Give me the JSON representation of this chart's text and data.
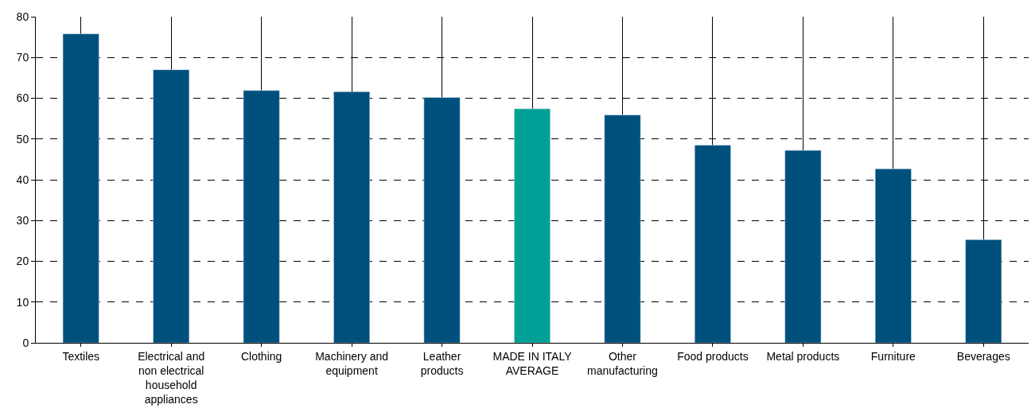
{
  "chart_data": {
    "type": "bar",
    "categories": [
      "Textiles",
      "Electrical and non electrical household appliances",
      "Clothing",
      "Machinery and equipment",
      "Leather products",
      "MADE IN ITALY AVERAGE",
      "Other manufacturing",
      "Food products",
      "Metal products",
      "Furniture",
      "Beverages"
    ],
    "values": [
      75.8,
      67.0,
      61.9,
      61.6,
      60.2,
      57.4,
      55.9,
      48.5,
      47.2,
      42.7,
      25.3
    ],
    "colors": [
      "#00507d",
      "#00507d",
      "#00507d",
      "#00507d",
      "#00507d",
      "#00a096",
      "#00507d",
      "#00507d",
      "#00507d",
      "#00507d",
      "#00507d"
    ],
    "ylim": [
      0,
      80
    ],
    "yticks": [
      0,
      10,
      20,
      30,
      40,
      50,
      60,
      70,
      80
    ],
    "grid": true,
    "legend": false
  }
}
